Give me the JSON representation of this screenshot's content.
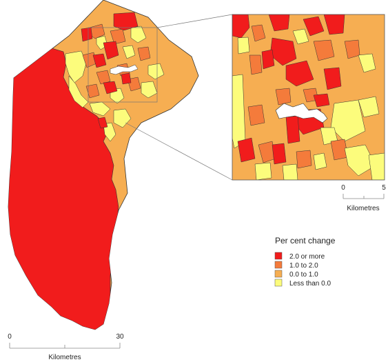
{
  "legend": {
    "title": "Per cent change",
    "items": [
      {
        "label": "2.0 or more",
        "color": "#f11c1c"
      },
      {
        "label": "1.0 to 2.0",
        "color": "#f47b3b"
      },
      {
        "label": "0.0 to 1.0",
        "color": "#f6ae52"
      },
      {
        "label": "Less than 0.0",
        "color": "#fcfc7c"
      }
    ]
  },
  "main_scale": {
    "start": "0",
    "end": "30",
    "unit": "Kilometres"
  },
  "inset_scale": {
    "start": "0",
    "end": "5",
    "unit": "Kilometres"
  }
}
